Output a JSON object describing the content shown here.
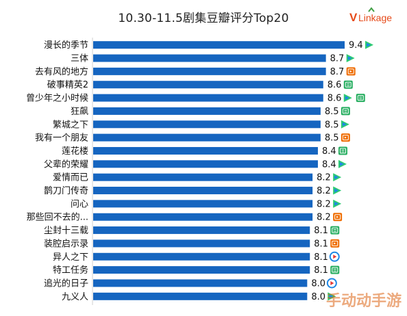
{
  "title": "10.30-11.5剧集豆瓣评分Top20",
  "logo": {
    "v": "V",
    "rest": "Linkage"
  },
  "watermark": "手动动手游",
  "colors": {
    "bar": "#1565c0",
    "tencent": "#2ecc71",
    "iqiyi": "#27ae60",
    "youku": "#1e88e5",
    "mango": "#ef6c00",
    "logo": "#e64a19"
  },
  "chart_data": {
    "type": "bar",
    "orientation": "horizontal",
    "xlim": [
      0,
      9.4
    ],
    "categories": [
      "漫长的季节",
      "三体",
      "去有风的地方",
      "破事精英2",
      "曾少年之小时候",
      "狂飙",
      "繁城之下",
      "我有一个朋友",
      "莲花楼",
      "父辈的荣耀",
      "爱情而已",
      "鹊刀门传奇",
      "问心",
      "那些回不去的...",
      "尘封十三载",
      "装腔启示录",
      "异人之下",
      "特工任务",
      "追光的日子",
      "九义人"
    ],
    "values": [
      9.4,
      8.7,
      8.7,
      8.6,
      8.6,
      8.5,
      8.5,
      8.5,
      8.4,
      8.4,
      8.2,
      8.2,
      8.2,
      8.2,
      8.1,
      8.1,
      8.1,
      8.1,
      8.0,
      8.0
    ],
    "value_labels": [
      "9.4",
      "8.7",
      "8.7",
      "8.6",
      "8.6",
      "8.5",
      "8.5",
      "8.5",
      "8.4",
      "8.4",
      "8.2",
      "8.2",
      "8.2",
      "8.2",
      "8.1",
      "8.1",
      "8.1",
      "8.1",
      "8.0",
      "8.0"
    ],
    "platforms": [
      [
        "tencent-icon"
      ],
      [
        "tencent-icon"
      ],
      [
        "mango-icon"
      ],
      [
        "iqiyi-icon"
      ],
      [
        "tencent-icon",
        "iqiyi-icon"
      ],
      [
        "iqiyi-icon"
      ],
      [
        "tencent-icon"
      ],
      [
        "mango-icon"
      ],
      [
        "iqiyi-icon"
      ],
      [
        "tencent-icon"
      ],
      [
        "tencent-icon"
      ],
      [
        "tencent-icon"
      ],
      [
        "tencent-icon"
      ],
      [
        "mango-icon"
      ],
      [
        "iqiyi-icon"
      ],
      [
        "mango-icon"
      ],
      [
        "youku-icon"
      ],
      [
        "iqiyi-icon"
      ],
      [
        "youku-icon"
      ],
      [
        "tencent-icon"
      ]
    ]
  }
}
